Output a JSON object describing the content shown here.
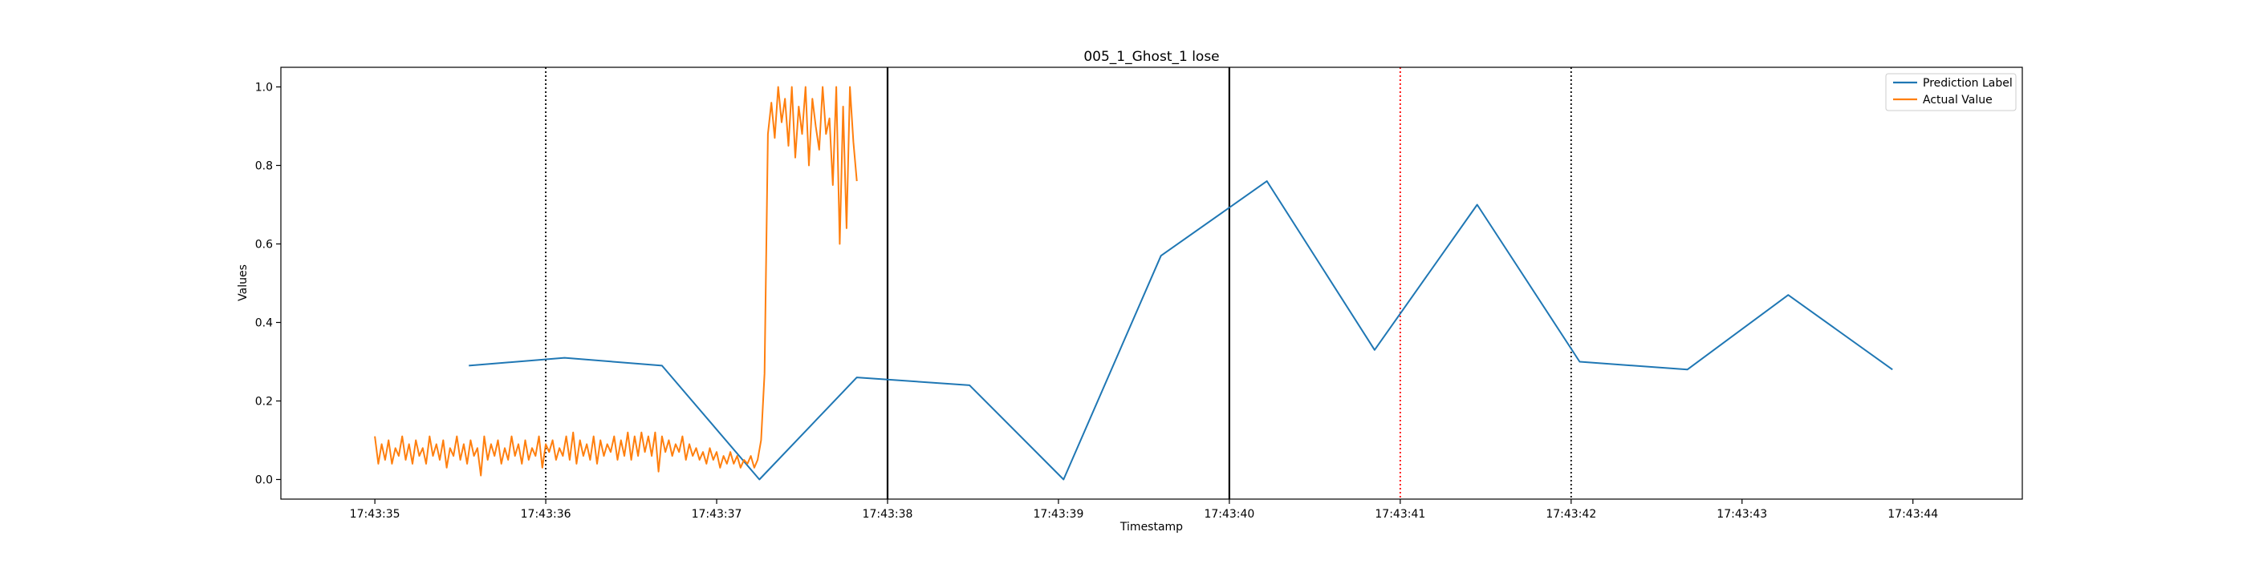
{
  "chart_data": {
    "type": "line",
    "title": "005_1_Ghost_1 lose",
    "xlabel": "Timestamp",
    "ylabel": "Values",
    "xlim": [
      34.45,
      44.64
    ],
    "ylim": [
      -0.05,
      1.05
    ],
    "x_ticks": [
      35,
      36,
      37,
      38,
      39,
      40,
      41,
      42,
      43,
      44
    ],
    "x_tick_labels": [
      "17:43:35",
      "17:43:36",
      "17:43:37",
      "17:43:38",
      "17:43:39",
      "17:43:40",
      "17:43:41",
      "17:43:42",
      "17:43:43",
      "17:43:44"
    ],
    "y_ticks": [
      0.0,
      0.2,
      0.4,
      0.6,
      0.8,
      1.0
    ],
    "y_tick_labels": [
      "0.0",
      "0.2",
      "0.4",
      "0.6",
      "0.8",
      "1.0"
    ],
    "grid": false,
    "legend_position": "top-right",
    "x_unit_note": "x values are seconds after 17:43:00",
    "series": [
      {
        "name": "Prediction Label",
        "color": "#1f77b4",
        "x": [
          35.55,
          36.11,
          36.68,
          37.25,
          37.82,
          38.48,
          39.03,
          39.6,
          40.22,
          40.85,
          41.45,
          42.05,
          42.68,
          43.27,
          43.88
        ],
        "y": [
          0.29,
          0.31,
          0.29,
          0.0,
          0.26,
          0.24,
          0.0,
          0.57,
          0.76,
          0.33,
          0.7,
          0.3,
          0.28,
          0.47,
          0.28
        ]
      },
      {
        "name": "Actual Value",
        "color": "#ff7f0e",
        "x": [
          35.0,
          35.02,
          35.04,
          35.06,
          35.08,
          35.1,
          35.12,
          35.14,
          35.16,
          35.18,
          35.2,
          35.22,
          35.24,
          35.26,
          35.28,
          35.3,
          35.32,
          35.34,
          35.36,
          35.38,
          35.4,
          35.42,
          35.44,
          35.46,
          35.48,
          35.5,
          35.52,
          35.54,
          35.56,
          35.58,
          35.6,
          35.62,
          35.64,
          35.66,
          35.68,
          35.7,
          35.72,
          35.74,
          35.76,
          35.78,
          35.8,
          35.82,
          35.84,
          35.86,
          35.88,
          35.9,
          35.92,
          35.94,
          35.96,
          35.98,
          36.0,
          36.02,
          36.04,
          36.06,
          36.08,
          36.1,
          36.12,
          36.14,
          36.16,
          36.18,
          36.2,
          36.22,
          36.24,
          36.26,
          36.28,
          36.3,
          36.32,
          36.34,
          36.36,
          36.38,
          36.4,
          36.42,
          36.44,
          36.46,
          36.48,
          36.5,
          36.52,
          36.54,
          36.56,
          36.58,
          36.6,
          36.62,
          36.64,
          36.66,
          36.68,
          36.7,
          36.72,
          36.74,
          36.76,
          36.78,
          36.8,
          36.82,
          36.84,
          36.86,
          36.88,
          36.9,
          36.92,
          36.94,
          36.96,
          36.98,
          37.0,
          37.02,
          37.04,
          37.06,
          37.08,
          37.1,
          37.12,
          37.14,
          37.16,
          37.18,
          37.2,
          37.22,
          37.24,
          37.26,
          37.28,
          37.3,
          37.32,
          37.34,
          37.36,
          37.38,
          37.4,
          37.42,
          37.44,
          37.46,
          37.48,
          37.5,
          37.52,
          37.54,
          37.56,
          37.58,
          37.6,
          37.62,
          37.64,
          37.66,
          37.68,
          37.7,
          37.72,
          37.74,
          37.76,
          37.78,
          37.8,
          37.82
        ],
        "y": [
          0.11,
          0.04,
          0.09,
          0.05,
          0.1,
          0.04,
          0.08,
          0.06,
          0.11,
          0.05,
          0.09,
          0.04,
          0.1,
          0.06,
          0.08,
          0.04,
          0.11,
          0.06,
          0.09,
          0.05,
          0.1,
          0.03,
          0.08,
          0.06,
          0.11,
          0.05,
          0.09,
          0.04,
          0.1,
          0.06,
          0.08,
          0.01,
          0.11,
          0.05,
          0.09,
          0.06,
          0.1,
          0.04,
          0.08,
          0.05,
          0.11,
          0.06,
          0.09,
          0.04,
          0.1,
          0.05,
          0.08,
          0.06,
          0.11,
          0.03,
          0.09,
          0.07,
          0.1,
          0.05,
          0.08,
          0.06,
          0.11,
          0.05,
          0.12,
          0.04,
          0.1,
          0.06,
          0.09,
          0.05,
          0.11,
          0.04,
          0.1,
          0.06,
          0.09,
          0.07,
          0.11,
          0.05,
          0.1,
          0.06,
          0.12,
          0.05,
          0.11,
          0.06,
          0.12,
          0.07,
          0.11,
          0.06,
          0.12,
          0.02,
          0.11,
          0.07,
          0.1,
          0.06,
          0.09,
          0.07,
          0.11,
          0.05,
          0.09,
          0.06,
          0.08,
          0.05,
          0.07,
          0.04,
          0.08,
          0.05,
          0.07,
          0.03,
          0.06,
          0.04,
          0.07,
          0.04,
          0.06,
          0.03,
          0.05,
          0.04,
          0.06,
          0.03,
          0.05,
          0.1,
          0.27,
          0.88,
          0.96,
          0.87,
          1.0,
          0.91,
          0.97,
          0.85,
          1.0,
          0.82,
          0.95,
          0.88,
          1.0,
          0.8,
          0.97,
          0.9,
          0.84,
          1.0,
          0.88,
          0.92,
          0.75,
          1.0,
          0.6,
          0.95,
          0.64,
          1.0,
          0.86,
          0.76
        ]
      }
    ],
    "vertical_lines": [
      {
        "x": 36.0,
        "style": "dotted",
        "color": "#000000"
      },
      {
        "x": 38.0,
        "style": "solid",
        "color": "#000000"
      },
      {
        "x": 40.0,
        "style": "solid",
        "color": "#000000"
      },
      {
        "x": 41.0,
        "style": "dotted",
        "color": "#ff0000"
      },
      {
        "x": 42.0,
        "style": "dotted",
        "color": "#000000"
      }
    ]
  }
}
